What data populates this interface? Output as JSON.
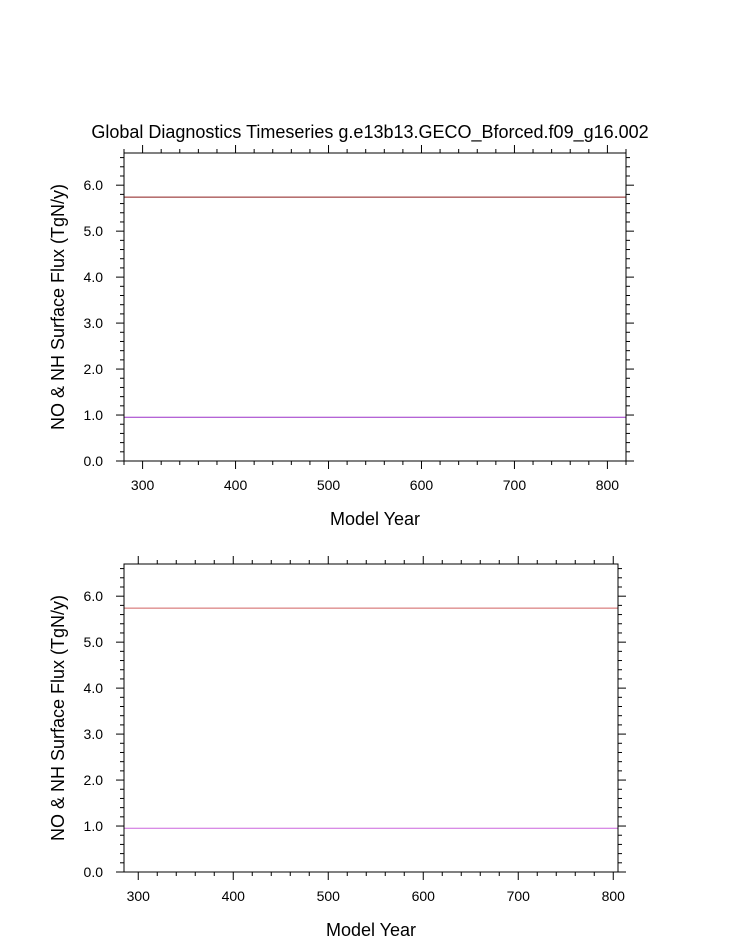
{
  "title": "Global Diagnostics Timeseries g.e13b13.GECO_Bforced.f09_g16.002",
  "chart_data": [
    {
      "type": "line",
      "title": "Global Diagnostics Timeseries g.e13b13.GECO_Bforced.f09_g16.002",
      "xlabel": "Model Year",
      "ylabel": "NO & NH Surface Flux (TgN/y)",
      "xlim": [
        280,
        820
      ],
      "ylim": [
        0.0,
        6.7
      ],
      "x_ticks": [
        300,
        400,
        500,
        600,
        700,
        800
      ],
      "y_ticks": [
        "0.0",
        "1.0",
        "2.0",
        "3.0",
        "4.0",
        "5.0",
        "6.0"
      ],
      "grid": false,
      "legend": "none",
      "series": [
        {
          "color": "#8b1a1a",
          "x": [
            280,
            820
          ],
          "y": [
            5.74,
            5.74
          ]
        },
        {
          "color": "#9b30c8",
          "x": [
            280,
            820
          ],
          "y": [
            0.95,
            0.95
          ]
        }
      ]
    },
    {
      "type": "line",
      "xlabel": "Model Year",
      "ylabel": "NO & NH Surface Flux (TgN/y)",
      "xlim": [
        285,
        805
      ],
      "ylim": [
        0.0,
        6.7
      ],
      "x_ticks": [
        300,
        400,
        500,
        600,
        700,
        800
      ],
      "y_ticks": [
        "0.0",
        "1.0",
        "2.0",
        "3.0",
        "4.0",
        "5.0",
        "6.0"
      ],
      "grid": false,
      "legend": "none",
      "series": [
        {
          "color": "#d06060",
          "x": [
            285,
            805
          ],
          "y": [
            5.74,
            5.74
          ]
        },
        {
          "color": "#cc66dd",
          "x": [
            285,
            805
          ],
          "y": [
            0.95,
            0.95
          ]
        }
      ]
    }
  ]
}
